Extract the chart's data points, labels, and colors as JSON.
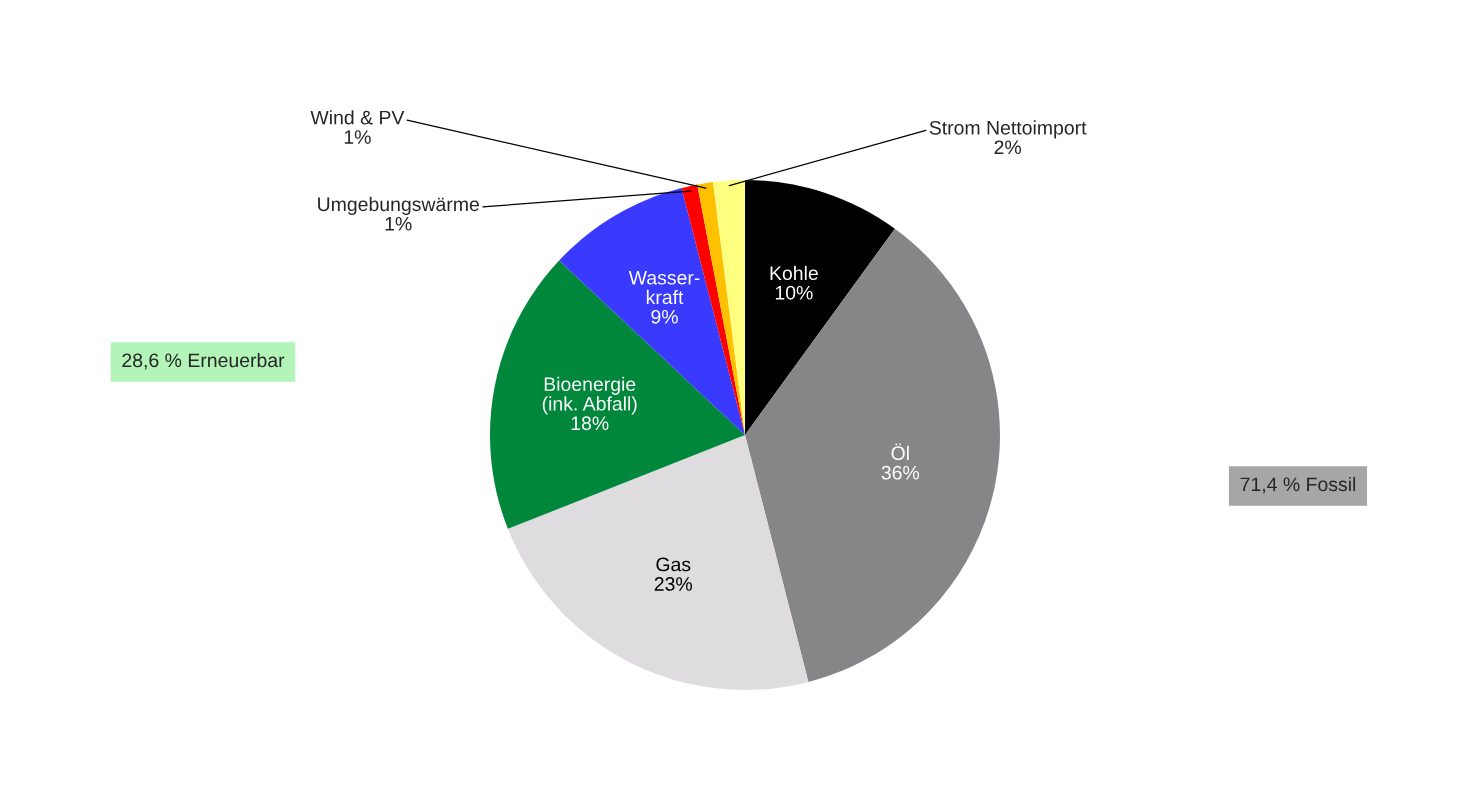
{
  "chart_data": {
    "type": "pie",
    "categories": [
      "Kohle",
      "Öl",
      "Gas",
      "Bioenergie\n(ink. Abfall)",
      "Wasser-\nkraft",
      "Umgebungswärme",
      "Wind & PV",
      "Strom Nettoimport"
    ],
    "values": [
      10,
      36,
      23,
      18,
      9,
      1,
      1,
      2
    ],
    "colors": [
      "#000000",
      "#868587",
      "#dedcdf",
      "#00873c",
      "#3a3aff",
      "#ff0000",
      "#ffc000",
      "#ffff80"
    ],
    "value_labels": [
      "10%",
      "36%",
      "23%",
      "18%",
      "9%",
      "1%",
      "1%",
      "2%"
    ],
    "legend": false,
    "annotations": [
      "28,6 % Erneuerbar",
      "71,4 % Fossil"
    ]
  }
}
